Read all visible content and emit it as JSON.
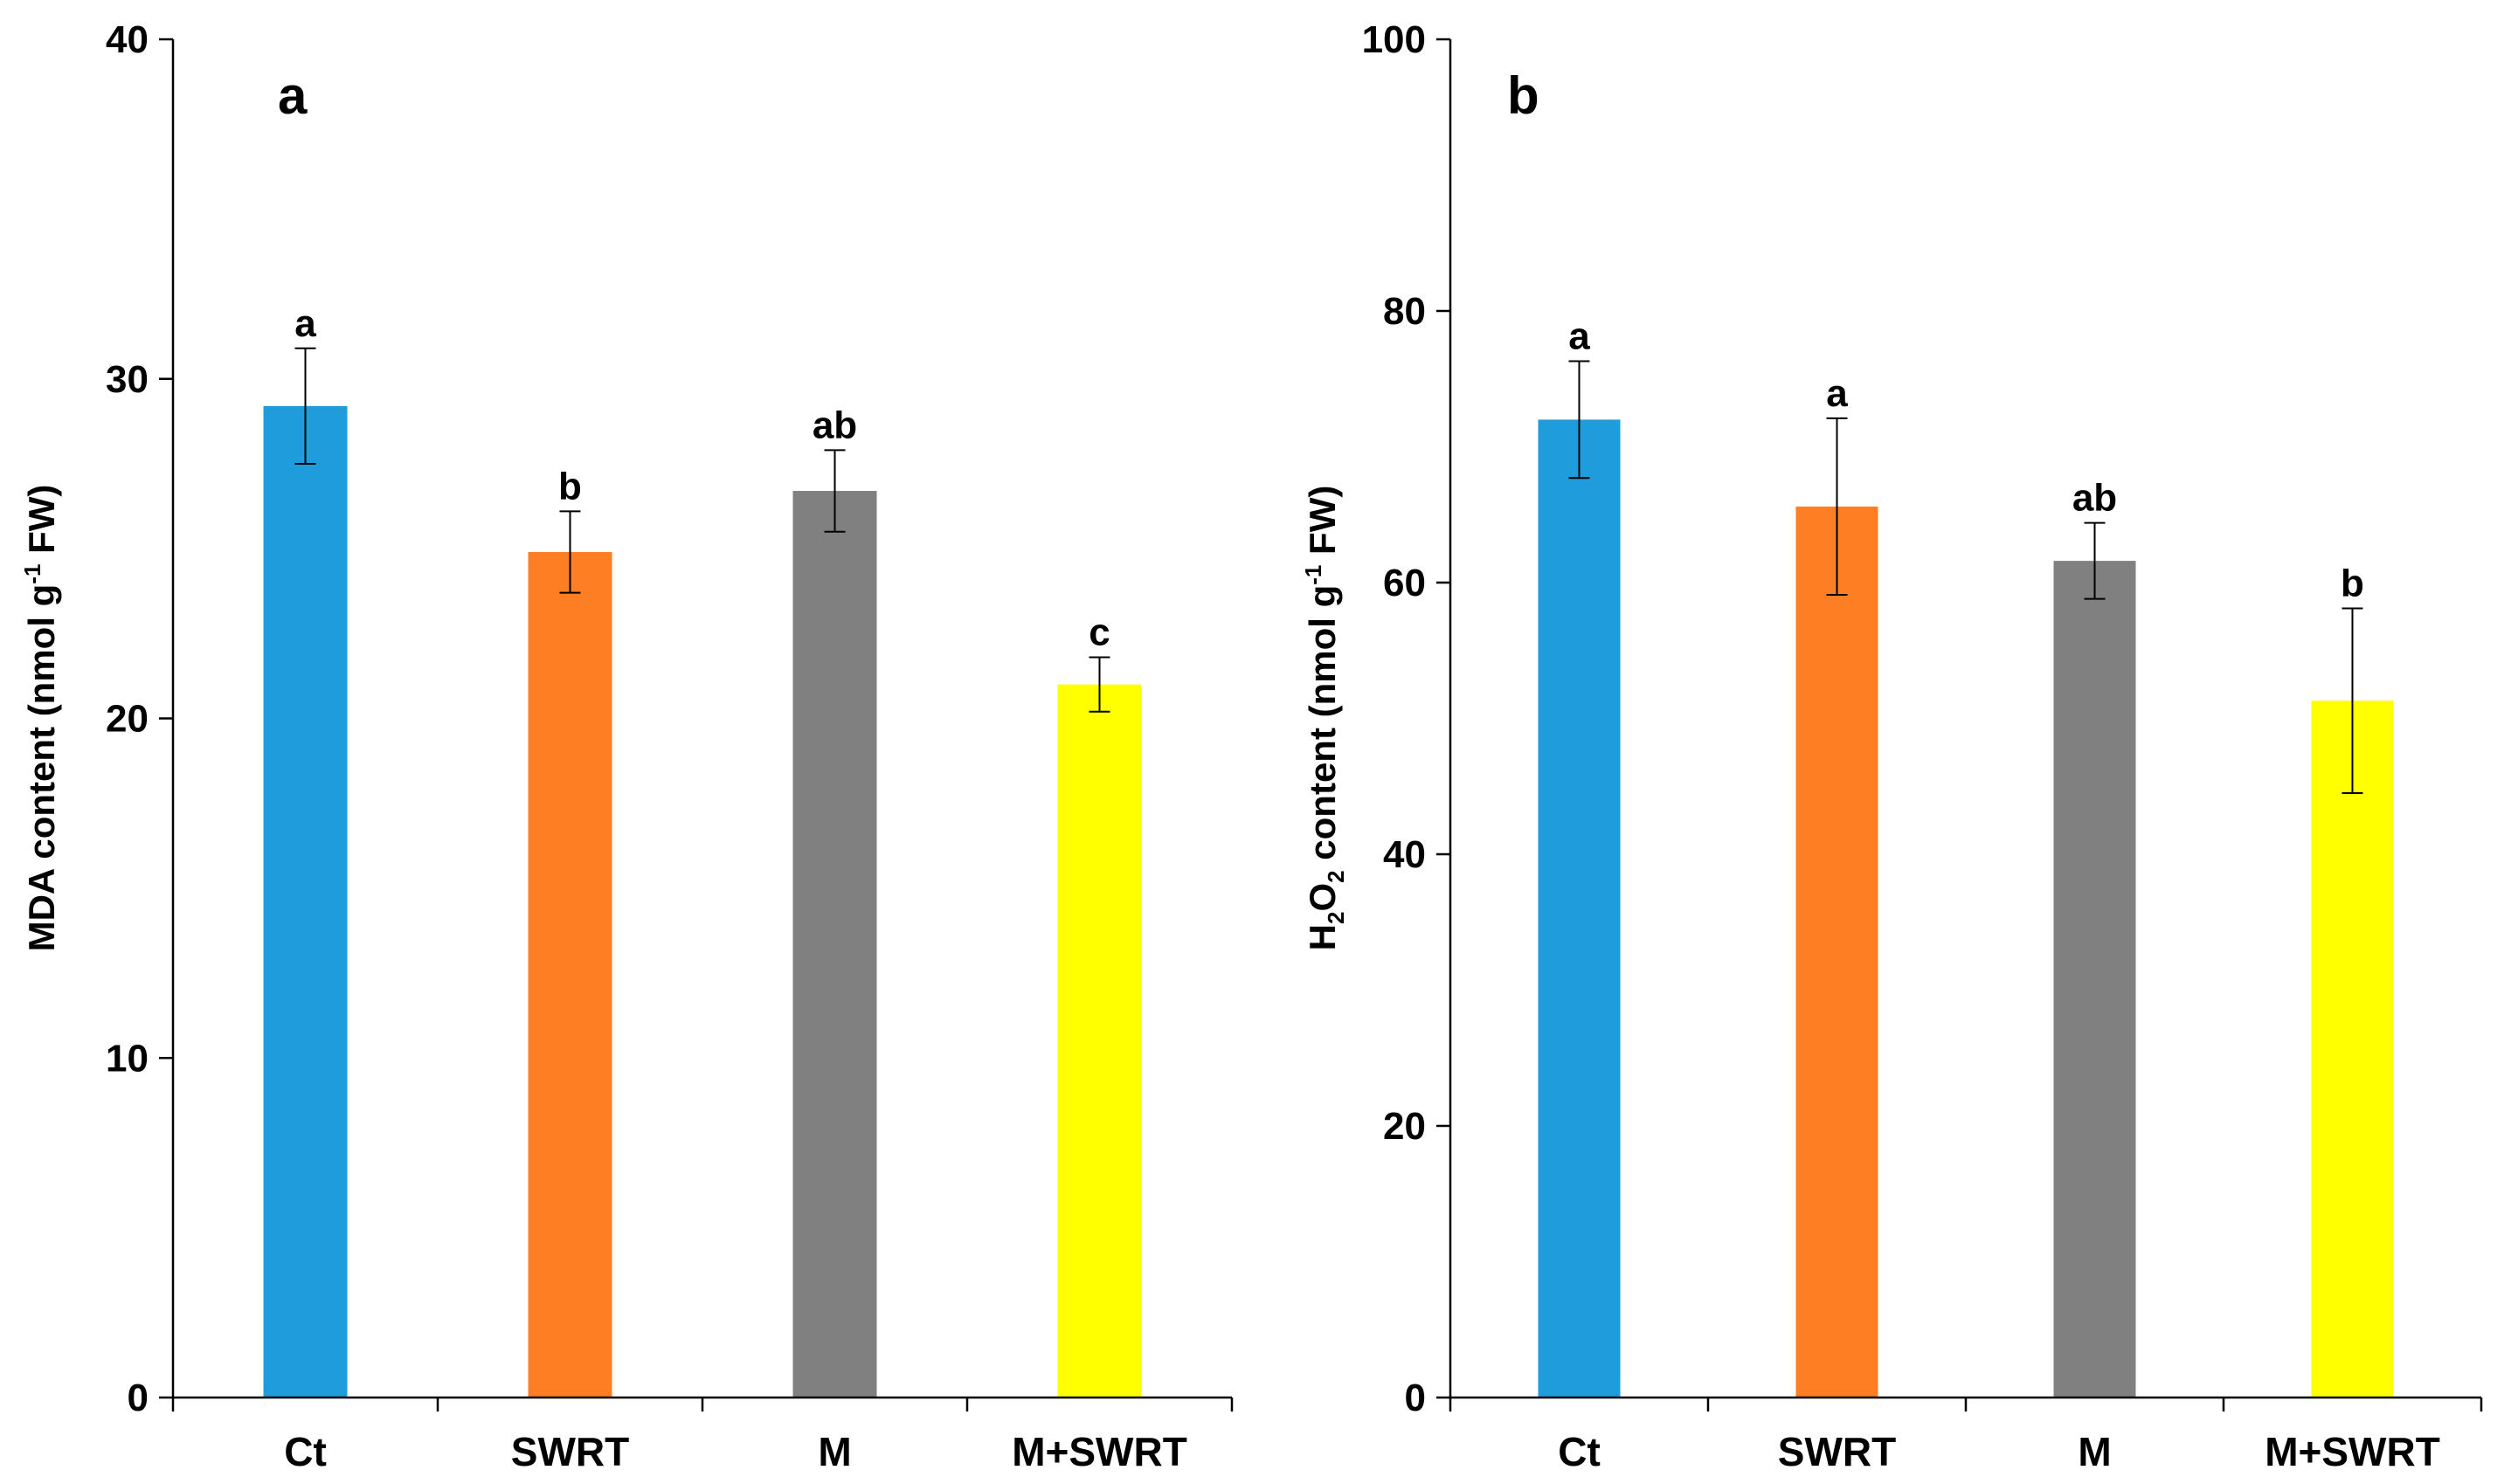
{
  "colors": {
    "Ct": "#1e9cdb",
    "SWRT": "#fd7e23",
    "M": "#808080",
    "M+SWRT": "#ffff00"
  },
  "chart_data": [
    {
      "type": "bar",
      "panel_label": "a",
      "categories": [
        "Ct",
        "SWRT",
        "M",
        "M+SWRT"
      ],
      "values": [
        29.2,
        24.9,
        26.7,
        21.0
      ],
      "errors": [
        1.7,
        1.2,
        1.2,
        0.8
      ],
      "significance": [
        "a",
        "b",
        "ab",
        "c"
      ],
      "ylabel_main": "MDA content (nmol g",
      "ylabel_sup": "-1",
      "ylabel_tail": " FW)",
      "ylim": [
        0,
        40
      ],
      "yticks": [
        0,
        10,
        20,
        30,
        40
      ],
      "grid": false
    },
    {
      "type": "bar",
      "panel_label": "b",
      "categories": [
        "Ct",
        "SWRT",
        "M",
        "M+SWRT"
      ],
      "values": [
        72.0,
        65.6,
        61.6,
        51.3
      ],
      "errors": [
        4.3,
        6.5,
        2.8,
        6.8
      ],
      "significance": [
        "a",
        "a",
        "ab",
        "b"
      ],
      "ylabel_h": "H",
      "ylabel_sub1": "2",
      "ylabel_o": "O",
      "ylabel_sub2": "2",
      "ylabel_main": " content (nmol g",
      "ylabel_sup": "-1",
      "ylabel_tail": " FW)",
      "ylim": [
        0,
        100
      ],
      "yticks": [
        0,
        20,
        40,
        60,
        80,
        100
      ],
      "grid": false
    }
  ]
}
